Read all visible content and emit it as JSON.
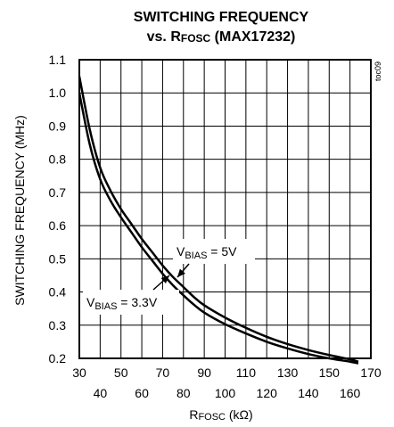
{
  "chart_data": {
    "type": "line",
    "title": "SWITCHING FREQUENCY",
    "subtitle": "vs. RFOSC (MAX17232)",
    "xlabel": "RFOSC (kΩ)",
    "ylabel": "SWITCHING FREQUENCY (MHz)",
    "xlim": [
      30,
      170
    ],
    "ylim": [
      0.2,
      1.1
    ],
    "x_ticks": [
      30,
      40,
      50,
      60,
      70,
      80,
      90,
      100,
      110,
      120,
      130,
      140,
      150,
      160,
      170
    ],
    "y_ticks": [
      "0.2",
      "0.3",
      "0.4",
      "0.5",
      "0.6",
      "0.7",
      "0.8",
      "0.9",
      "1.0",
      "1.1"
    ],
    "grid": true,
    "series": [
      {
        "name": "VBIAS = 5V",
        "x": [
          30,
          35,
          40,
          45,
          50,
          55,
          60,
          65,
          70,
          75,
          80,
          85,
          90,
          100,
          110,
          120,
          130,
          140,
          150,
          160,
          164
        ],
        "y": [
          1.05,
          0.89,
          0.775,
          0.705,
          0.65,
          0.605,
          0.56,
          0.52,
          0.48,
          0.445,
          0.415,
          0.385,
          0.36,
          0.323,
          0.292,
          0.265,
          0.243,
          0.225,
          0.21,
          0.197,
          0.19
        ]
      },
      {
        "name": "VBIAS = 3.3V",
        "x": [
          30,
          35,
          40,
          45,
          50,
          55,
          60,
          65,
          70,
          75,
          80,
          85,
          90,
          100,
          110,
          120,
          130,
          140,
          150,
          160,
          164
        ],
        "y": [
          1.0,
          0.845,
          0.74,
          0.675,
          0.625,
          0.58,
          0.535,
          0.495,
          0.455,
          0.42,
          0.39,
          0.362,
          0.338,
          0.303,
          0.275,
          0.25,
          0.23,
          0.213,
          0.2,
          0.19,
          0.185
        ]
      }
    ],
    "annotations": [
      {
        "series": "VBIAS = 5V",
        "label_main": "V",
        "label_sub": "BIAS",
        "label_rest": " = 5V"
      },
      {
        "series": "VBIAS = 3.3V",
        "label_main": "V",
        "label_sub": "BIAS",
        "label_rest": " = 3.3V"
      }
    ],
    "watermark": "toc09",
    "colors": {
      "line": "#000000",
      "grid": "#000000",
      "background": "#ffffff"
    }
  }
}
